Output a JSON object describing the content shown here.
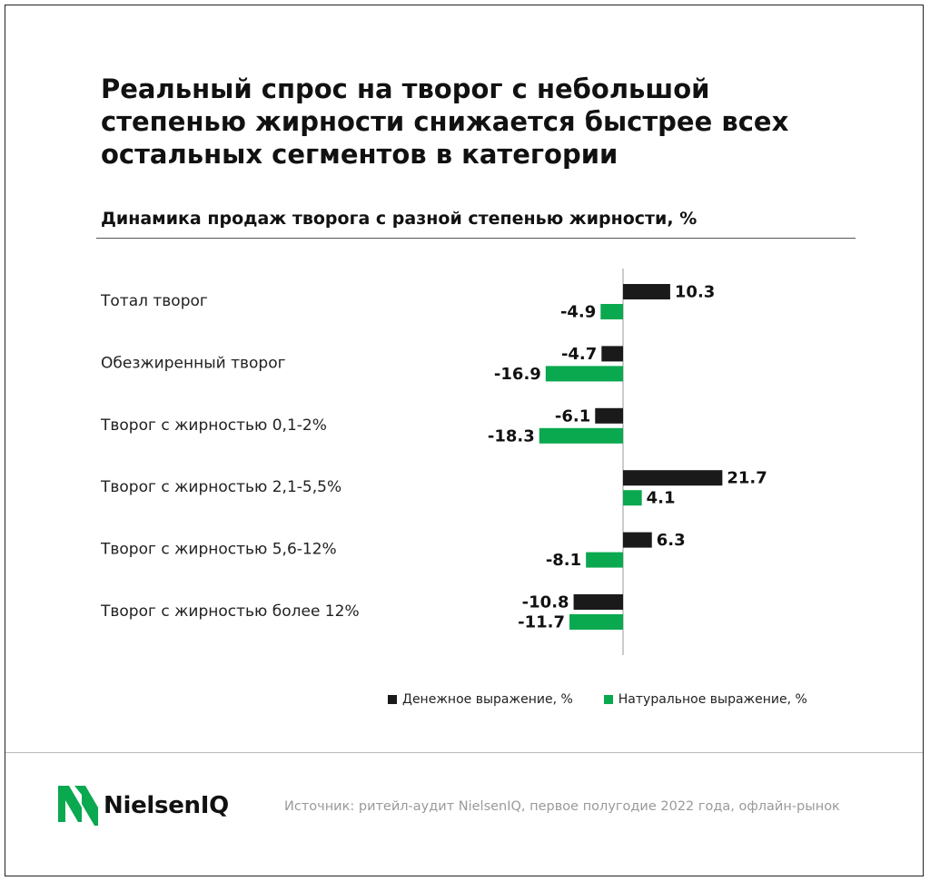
{
  "headline": "Реальный спрос на творог с небольшой степенью жирности снижается быстрее всех остальных сегментов в категории",
  "subtitle": "Динамика продаж творога с разной степенью жирности, %",
  "colors": {
    "money": "#1a1a1a",
    "volume": "#0aa84f"
  },
  "chart_data": {
    "type": "bar",
    "orientation": "horizontal",
    "categories": [
      "Тотал творог",
      "Обезжиренный творог",
      "Творог с жирностью 0,1-2%",
      "Творог с жирностью 2,1-5,5%",
      "Творог с жирностью 5,6-12%",
      "Творог с жирностью более 12%"
    ],
    "series": [
      {
        "name": "Денежное выражение, %",
        "values": [
          10.3,
          -4.7,
          -6.1,
          21.7,
          6.3,
          -10.8
        ]
      },
      {
        "name": "Натуральное выражение, %",
        "values": [
          -4.9,
          -16.9,
          -18.3,
          4.1,
          -8.1,
          -11.7
        ]
      }
    ],
    "value_labels": [
      [
        "10.3",
        "-4.7",
        "-6.1",
        "21.7",
        "6.3",
        "-10.8"
      ],
      [
        "-4.9",
        "-16.9",
        "-18.3",
        "4.1",
        "-8.1",
        "-11.7"
      ]
    ],
    "grid": false,
    "legend_position": "bottom-right"
  },
  "legend": {
    "money": "Денежное выражение, %",
    "volume": "Натуральное выражение, %"
  },
  "logo": {
    "name": "NielsenIQ",
    "icon": "nielseniq-logo-icon"
  },
  "source": "Источник: ритейл-аудит NielsenIQ, первое полугодие 2022 года, офлайн-рынок"
}
